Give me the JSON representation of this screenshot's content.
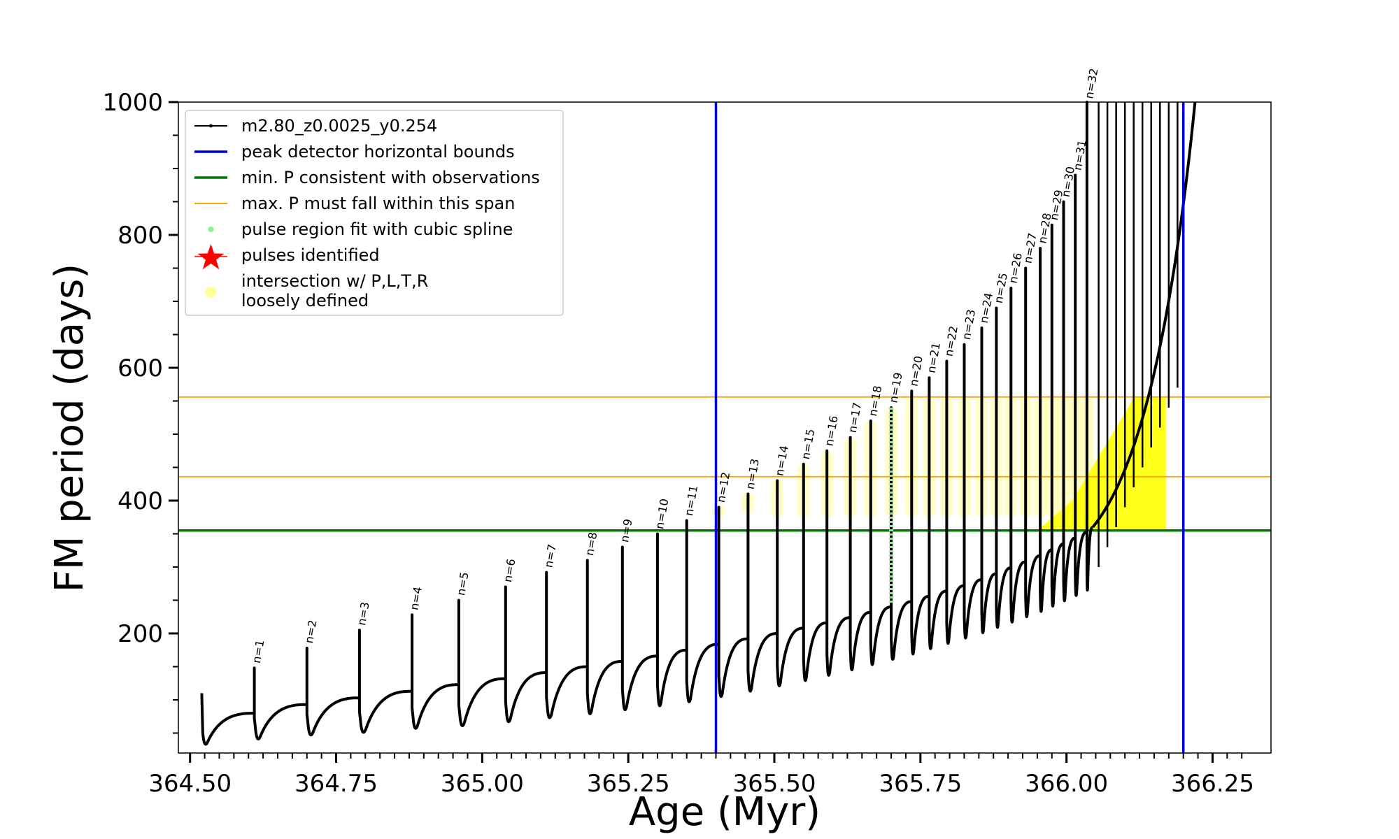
{
  "chart_data": {
    "type": "line",
    "xlabel": "Age (Myr)",
    "ylabel": "FM period (days)",
    "xlim": [
      364.48,
      366.35
    ],
    "ylim": [
      20,
      1000
    ],
    "x_ticks": [
      364.5,
      364.75,
      365.0,
      365.25,
      365.5,
      365.75,
      366.0,
      366.25
    ],
    "x_tick_labels": [
      "364.50",
      "364.75",
      "365.00",
      "365.25",
      "365.50",
      "365.75",
      "366.00",
      "366.25"
    ],
    "y_ticks": [
      200,
      400,
      600,
      800,
      1000
    ],
    "y_tick_labels": [
      "200",
      "400",
      "600",
      "800",
      "1000"
    ],
    "grid": false,
    "legend_position": "top-left",
    "legend": [
      {
        "label": "m2.80_z0.0025_y0.254",
        "style": "line-dots",
        "color": "#000000"
      },
      {
        "label": "peak detector horizontal bounds",
        "style": "line",
        "color": "#0000dd"
      },
      {
        "label": "min. P consistent with observations",
        "style": "line",
        "color": "#007700"
      },
      {
        "label": "max. P must fall within this span",
        "style": "thin-line",
        "color": "#ffa500"
      },
      {
        "label": "pulse region fit with cubic spline",
        "style": "dot",
        "color": "#90ee90"
      },
      {
        "label": "pulses identified",
        "style": "star",
        "color": "#ff0000"
      },
      {
        "label": [
          "intersection w/ P,L,T,R",
          "loosely defined"
        ],
        "style": "big-dot",
        "color": "#ffff99"
      }
    ],
    "vertical_lines": [
      {
        "x": 365.4,
        "color": "#0000dd"
      },
      {
        "x": 366.2,
        "color": "#0000dd"
      }
    ],
    "horizontal_lines": [
      {
        "y": 355,
        "color": "#007700"
      },
      {
        "y": 436,
        "color": "#ffa500"
      },
      {
        "y": 556,
        "color": "#ffa500"
      }
    ],
    "series_start": {
      "x": 364.52,
      "y": 110
    },
    "pulses": [
      {
        "n": "n=1",
        "x": 364.61,
        "peak": 148,
        "min": 32,
        "base": 80
      },
      {
        "n": "n=2",
        "x": 364.7,
        "peak": 178,
        "min": 38,
        "base": 93
      },
      {
        "n": "n=3",
        "x": 364.79,
        "peak": 205,
        "min": 42,
        "base": 103
      },
      {
        "n": "n=4",
        "x": 364.88,
        "peak": 228,
        "min": 48,
        "base": 113
      },
      {
        "n": "n=5",
        "x": 364.96,
        "peak": 250,
        "min": 52,
        "base": 123
      },
      {
        "n": "n=6",
        "x": 365.04,
        "peak": 270,
        "min": 58,
        "base": 132
      },
      {
        "n": "n=7",
        "x": 365.11,
        "peak": 292,
        "min": 64,
        "base": 141
      },
      {
        "n": "n=8",
        "x": 365.18,
        "peak": 310,
        "min": 70,
        "base": 150
      },
      {
        "n": "n=9",
        "x": 365.24,
        "peak": 330,
        "min": 76,
        "base": 158
      },
      {
        "n": "n=10",
        "x": 365.3,
        "peak": 350,
        "min": 82,
        "base": 166
      },
      {
        "n": "n=11",
        "x": 365.35,
        "peak": 370,
        "min": 88,
        "base": 175
      },
      {
        "n": "n=12",
        "x": 365.405,
        "peak": 390,
        "min": 96,
        "base": 184
      },
      {
        "n": "n=13",
        "x": 365.455,
        "peak": 410,
        "min": 104,
        "base": 192
      },
      {
        "n": "n=14",
        "x": 365.505,
        "peak": 430,
        "min": 112,
        "base": 200
      },
      {
        "n": "n=15",
        "x": 365.55,
        "peak": 455,
        "min": 120,
        "base": 208
      },
      {
        "n": "n=16",
        "x": 365.59,
        "peak": 475,
        "min": 128,
        "base": 216
      },
      {
        "n": "n=17",
        "x": 365.63,
        "peak": 495,
        "min": 136,
        "base": 224
      },
      {
        "n": "n=18",
        "x": 365.665,
        "peak": 520,
        "min": 144,
        "base": 232
      },
      {
        "n": "n=19",
        "x": 365.7,
        "peak": 540,
        "min": 152,
        "base": 240
      },
      {
        "n": "n=20",
        "x": 365.735,
        "peak": 565,
        "min": 160,
        "base": 248
      },
      {
        "n": "n=21",
        "x": 365.765,
        "peak": 585,
        "min": 168,
        "base": 256
      },
      {
        "n": "n=22",
        "x": 365.795,
        "peak": 610,
        "min": 176,
        "base": 264
      },
      {
        "n": "n=23",
        "x": 365.825,
        "peak": 635,
        "min": 184,
        "base": 272
      },
      {
        "n": "n=24",
        "x": 365.855,
        "peak": 660,
        "min": 192,
        "base": 281
      },
      {
        "n": "n=25",
        "x": 365.88,
        "peak": 690,
        "min": 200,
        "base": 290
      },
      {
        "n": "n=26",
        "x": 365.905,
        "peak": 720,
        "min": 208,
        "base": 299
      },
      {
        "n": "n=27",
        "x": 365.93,
        "peak": 750,
        "min": 216,
        "base": 308
      },
      {
        "n": "n=28",
        "x": 365.955,
        "peak": 780,
        "min": 224,
        "base": 317
      },
      {
        "n": "n=29",
        "x": 365.975,
        "peak": 815,
        "min": 232,
        "base": 326
      },
      {
        "n": "n=30",
        "x": 365.995,
        "peak": 850,
        "min": 240,
        "base": 335
      },
      {
        "n": "n=31",
        "x": 366.015,
        "peak": 890,
        "min": 248,
        "base": 344
      },
      {
        "n": "n=32",
        "x": 366.035,
        "peak": 1000,
        "min": 256,
        "base": 353
      }
    ],
    "late_pulses_unlabeled": [
      366.055,
      366.07,
      366.085,
      366.1,
      366.115,
      366.13,
      366.145,
      366.16,
      366.175,
      366.19
    ],
    "spline_fit_region": {
      "x": 365.7,
      "y_range": [
        245,
        540
      ]
    },
    "intersection_regions_loose": [
      {
        "x": 365.405,
        "y_range": [
          375,
          395
        ]
      },
      {
        "x": 365.455,
        "y_range": [
          380,
          412
        ]
      },
      {
        "x": 365.505,
        "y_range": [
          375,
          432
        ]
      },
      {
        "x": 365.55,
        "y_range": [
          375,
          455
        ]
      },
      {
        "x": 365.59,
        "y_range": [
          375,
          475
        ]
      },
      {
        "x": 365.63,
        "y_range": [
          375,
          495
        ]
      },
      {
        "x": 365.665,
        "y_range": [
          375,
          520
        ]
      },
      {
        "x": 365.7,
        "y_range": [
          375,
          540
        ]
      },
      {
        "x": 365.735,
        "y_range": [
          375,
          556
        ]
      },
      {
        "x": 365.765,
        "y_range": [
          375,
          556
        ]
      },
      {
        "x": 365.795,
        "y_range": [
          375,
          556
        ]
      },
      {
        "x": 365.825,
        "y_range": [
          375,
          556
        ]
      },
      {
        "x": 365.855,
        "y_range": [
          375,
          556
        ]
      },
      {
        "x": 365.88,
        "y_range": [
          375,
          556
        ]
      },
      {
        "x": 365.905,
        "y_range": [
          375,
          556
        ]
      },
      {
        "x": 365.93,
        "y_range": [
          375,
          556
        ]
      },
      {
        "x": 365.955,
        "y_range": [
          375,
          556
        ]
      },
      {
        "x": 365.975,
        "y_range": [
          375,
          556
        ]
      },
      {
        "x": 365.995,
        "y_range": [
          375,
          556
        ]
      },
      {
        "x": 366.015,
        "y_range": [
          375,
          556
        ]
      },
      {
        "x": 366.035,
        "y_range": [
          375,
          556
        ]
      }
    ],
    "intersection_dense_region": {
      "x_range": [
        365.95,
        366.17
      ],
      "y_range": [
        355,
        556
      ]
    }
  }
}
